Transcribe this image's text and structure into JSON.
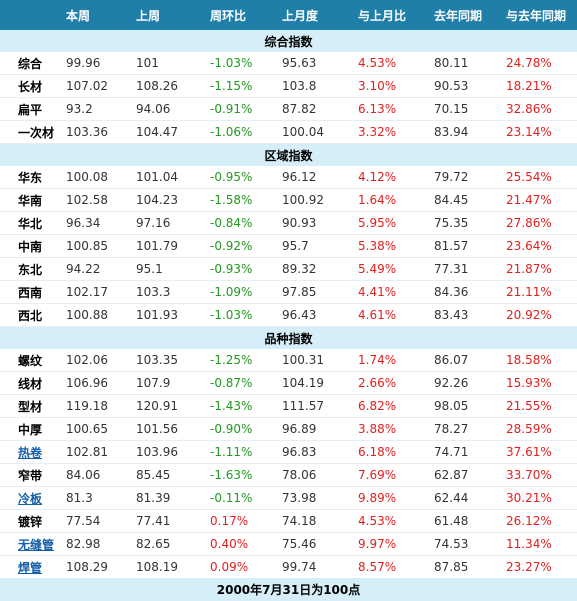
{
  "headers": [
    "",
    "本周",
    "上周",
    "周环比",
    "上月度",
    "与上月比",
    "去年同期",
    "与去年同期"
  ],
  "sections": [
    {
      "title": "综合指数",
      "rows": [
        {
          "name": "综合",
          "link": false,
          "cur": "99.96",
          "prev": "101",
          "wow": "-1.03%",
          "last_month": "95.63",
          "mom": "4.53%",
          "last_year": "80.11",
          "yoy": "24.78%"
        },
        {
          "name": "长材",
          "link": false,
          "cur": "107.02",
          "prev": "108.26",
          "wow": "-1.15%",
          "last_month": "103.8",
          "mom": "3.10%",
          "last_year": "90.53",
          "yoy": "18.21%"
        },
        {
          "name": "扁平",
          "link": false,
          "cur": "93.2",
          "prev": "94.06",
          "wow": "-0.91%",
          "last_month": "87.82",
          "mom": "6.13%",
          "last_year": "70.15",
          "yoy": "32.86%"
        },
        {
          "name": "一次材",
          "link": false,
          "cur": "103.36",
          "prev": "104.47",
          "wow": "-1.06%",
          "last_month": "100.04",
          "mom": "3.32%",
          "last_year": "83.94",
          "yoy": "23.14%"
        }
      ]
    },
    {
      "title": "区域指数",
      "rows": [
        {
          "name": "华东",
          "link": false,
          "cur": "100.08",
          "prev": "101.04",
          "wow": "-0.95%",
          "last_month": "96.12",
          "mom": "4.12%",
          "last_year": "79.72",
          "yoy": "25.54%"
        },
        {
          "name": "华南",
          "link": false,
          "cur": "102.58",
          "prev": "104.23",
          "wow": "-1.58%",
          "last_month": "100.92",
          "mom": "1.64%",
          "last_year": "84.45",
          "yoy": "21.47%"
        },
        {
          "name": "华北",
          "link": false,
          "cur": "96.34",
          "prev": "97.16",
          "wow": "-0.84%",
          "last_month": "90.93",
          "mom": "5.95%",
          "last_year": "75.35",
          "yoy": "27.86%"
        },
        {
          "name": "中南",
          "link": false,
          "cur": "100.85",
          "prev": "101.79",
          "wow": "-0.92%",
          "last_month": "95.7",
          "mom": "5.38%",
          "last_year": "81.57",
          "yoy": "23.64%"
        },
        {
          "name": "东北",
          "link": false,
          "cur": "94.22",
          "prev": "95.1",
          "wow": "-0.93%",
          "last_month": "89.32",
          "mom": "5.49%",
          "last_year": "77.31",
          "yoy": "21.87%"
        },
        {
          "name": "西南",
          "link": false,
          "cur": "102.17",
          "prev": "103.3",
          "wow": "-1.09%",
          "last_month": "97.85",
          "mom": "4.41%",
          "last_year": "84.36",
          "yoy": "21.11%"
        },
        {
          "name": "西北",
          "link": false,
          "cur": "100.88",
          "prev": "101.93",
          "wow": "-1.03%",
          "last_month": "96.43",
          "mom": "4.61%",
          "last_year": "83.43",
          "yoy": "20.92%"
        }
      ]
    },
    {
      "title": "品种指数",
      "rows": [
        {
          "name": "螺纹",
          "link": false,
          "cur": "102.06",
          "prev": "103.35",
          "wow": "-1.25%",
          "last_month": "100.31",
          "mom": "1.74%",
          "last_year": "86.07",
          "yoy": "18.58%"
        },
        {
          "name": "线材",
          "link": false,
          "cur": "106.96",
          "prev": "107.9",
          "wow": "-0.87%",
          "last_month": "104.19",
          "mom": "2.66%",
          "last_year": "92.26",
          "yoy": "15.93%"
        },
        {
          "name": "型材",
          "link": false,
          "cur": "119.18",
          "prev": "120.91",
          "wow": "-1.43%",
          "last_month": "111.57",
          "mom": "6.82%",
          "last_year": "98.05",
          "yoy": "21.55%"
        },
        {
          "name": "中厚",
          "link": false,
          "cur": "100.65",
          "prev": "101.56",
          "wow": "-0.90%",
          "last_month": "96.89",
          "mom": "3.88%",
          "last_year": "78.27",
          "yoy": "28.59%"
        },
        {
          "name": "热卷",
          "link": true,
          "cur": "102.81",
          "prev": "103.96",
          "wow": "-1.11%",
          "last_month": "96.83",
          "mom": "6.18%",
          "last_year": "74.71",
          "yoy": "37.61%"
        },
        {
          "name": "窄带",
          "link": false,
          "cur": "84.06",
          "prev": "85.45",
          "wow": "-1.63%",
          "last_month": "78.06",
          "mom": "7.69%",
          "last_year": "62.87",
          "yoy": "33.70%"
        },
        {
          "name": "冷板",
          "link": true,
          "cur": "81.3",
          "prev": "81.39",
          "wow": "-0.11%",
          "last_month": "73.98",
          "mom": "9.89%",
          "last_year": "62.44",
          "yoy": "30.21%"
        },
        {
          "name": "镀锌",
          "link": false,
          "cur": "77.54",
          "prev": "77.41",
          "wow": "0.17%",
          "last_month": "74.18",
          "mom": "4.53%",
          "last_year": "61.48",
          "yoy": "26.12%"
        },
        {
          "name": "无缝管",
          "link": true,
          "cur": "82.98",
          "prev": "82.65",
          "wow": "0.40%",
          "last_month": "75.46",
          "mom": "9.97%",
          "last_year": "74.53",
          "yoy": "11.34%"
        },
        {
          "name": "焊管",
          "link": true,
          "cur": "108.29",
          "prev": "108.19",
          "wow": "0.09%",
          "last_month": "99.74",
          "mom": "8.57%",
          "last_year": "87.85",
          "yoy": "23.27%"
        }
      ]
    }
  ],
  "footer": "2000年7月31日为100点",
  "colors": {
    "header_bg": "#1f7fa8",
    "section_bg": "#d5eef8",
    "positive": "#e12020",
    "negative": "#229922",
    "link": "#1560a8"
  }
}
